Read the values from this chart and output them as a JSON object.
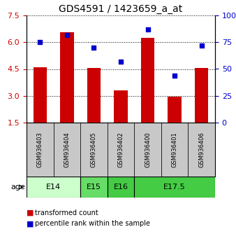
{
  "title": "GDS4591 / 1423659_a_at",
  "samples": [
    "GSM936403",
    "GSM936404",
    "GSM936405",
    "GSM936402",
    "GSM936400",
    "GSM936401",
    "GSM936406"
  ],
  "bar_values": [
    4.6,
    6.55,
    4.55,
    3.3,
    6.25,
    2.95,
    4.55
  ],
  "dot_values": [
    75,
    82,
    70,
    57,
    87,
    44,
    72
  ],
  "age_group_defs": [
    {
      "label": "E14",
      "start": 0,
      "end": 2,
      "color": "#ccffcc"
    },
    {
      "label": "E15",
      "start": 2,
      "end": 3,
      "color": "#66dd66"
    },
    {
      "label": "E16",
      "start": 3,
      "end": 4,
      "color": "#44cc44"
    },
    {
      "label": "E17.5",
      "start": 4,
      "end": 7,
      "color": "#44cc44"
    }
  ],
  "ylim_left": [
    1.5,
    7.5
  ],
  "ylim_right": [
    0,
    100
  ],
  "yticks_left": [
    1.5,
    3.0,
    4.5,
    6.0,
    7.5
  ],
  "yticks_right": [
    0,
    25,
    50,
    75,
    100
  ],
  "bar_color": "#cc0000",
  "dot_color": "#0000cc",
  "bar_width": 0.5,
  "legend_red_label": "transformed count",
  "legend_blue_label": "percentile rank within the sample",
  "age_label": "age",
  "sample_box_color": "#c8c8c8",
  "title_fontsize": 10,
  "tick_fontsize": 8,
  "sample_fontsize": 6,
  "age_fontsize": 8
}
